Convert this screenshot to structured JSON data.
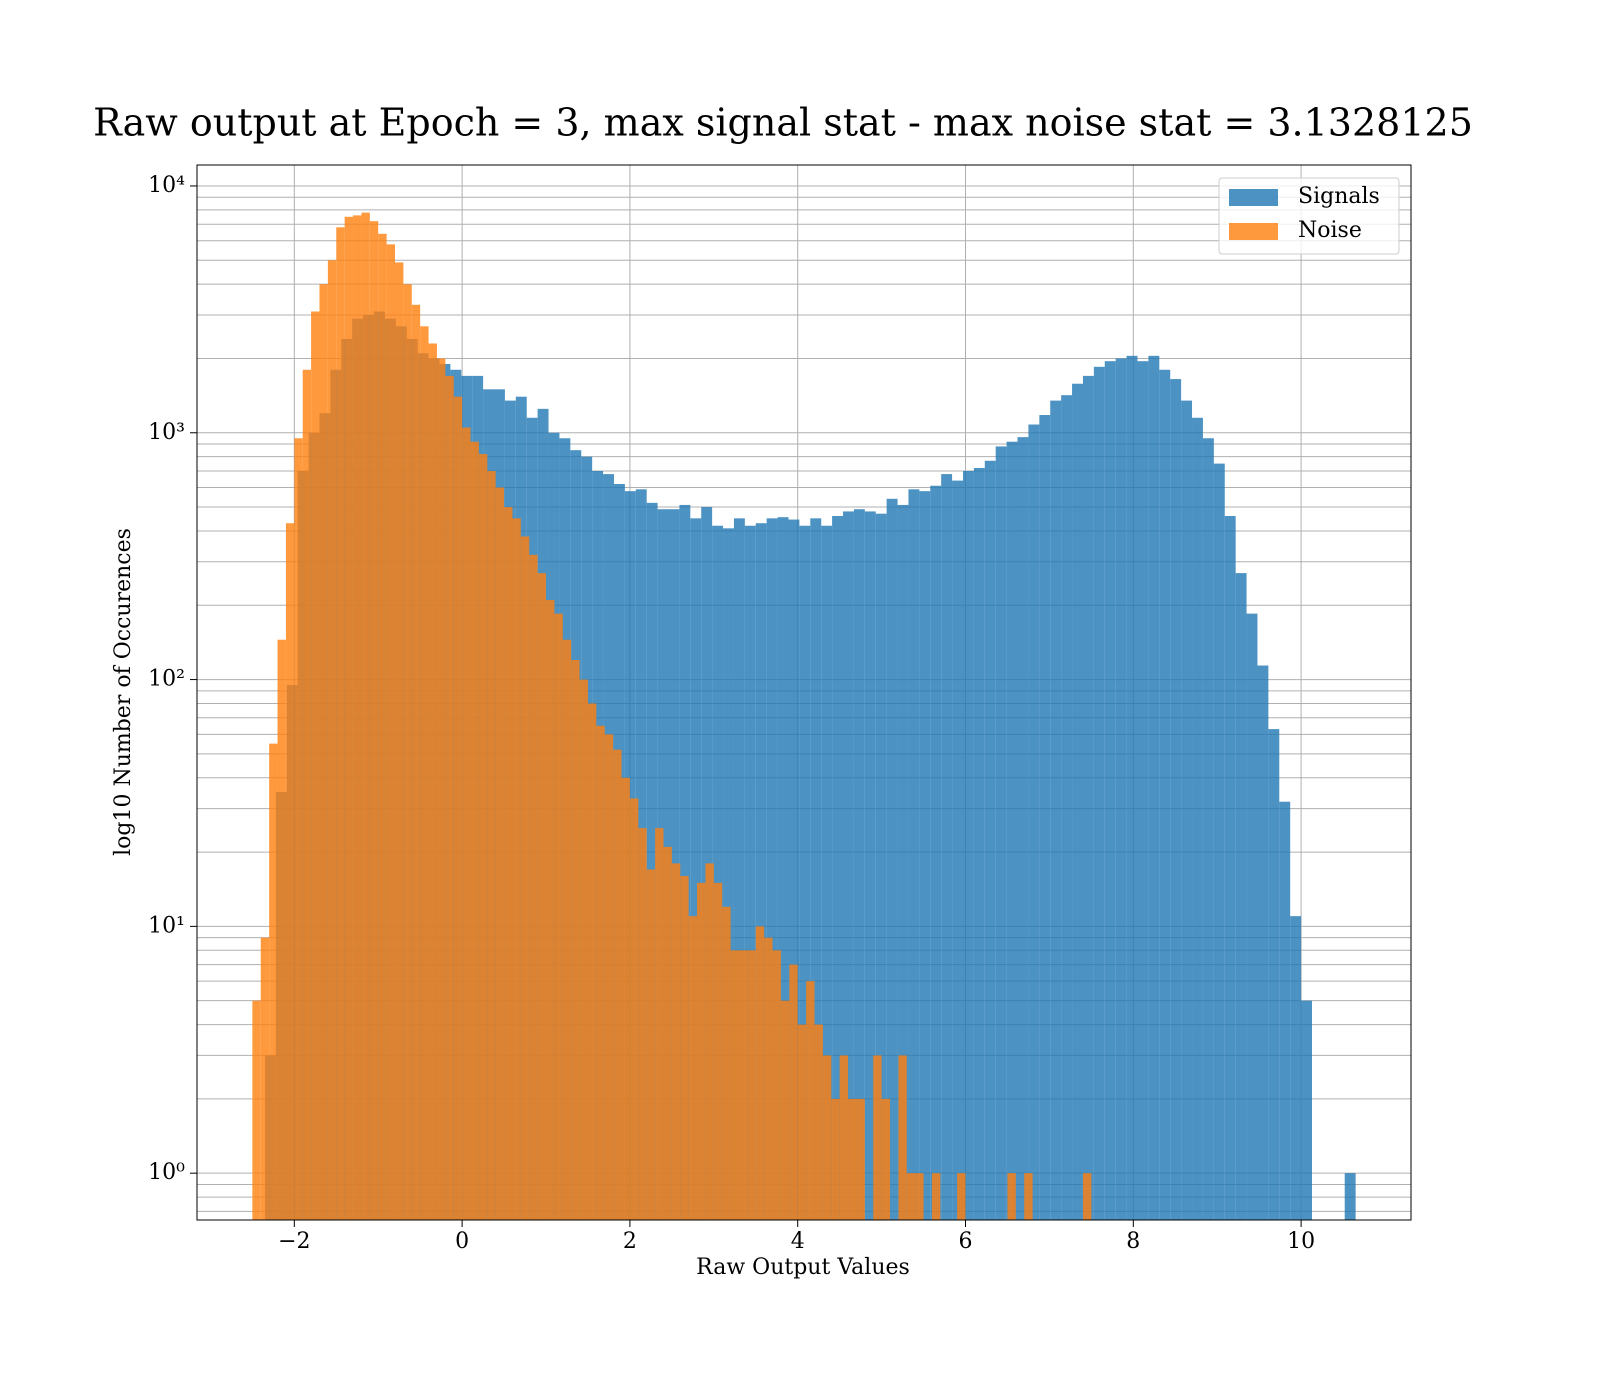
{
  "chart_data": {
    "type": "histogram",
    "title": "Raw output at Epoch = 3, max signal stat - max noise stat = 3.1328125",
    "xlabel": "Raw Output Values",
    "ylabel": "log10 Number of Occurences",
    "xlim": [
      -3.16,
      11.31
    ],
    "xticks": [
      {
        "value": -2,
        "label": "−2"
      },
      0,
      2,
      4,
      6,
      8,
      10
    ],
    "ylim": [
      0.646,
      12160
    ],
    "yscale": "log",
    "yticks": [
      {
        "value": 1,
        "label": "10⁰"
      },
      {
        "value": 10,
        "label": "10¹"
      },
      {
        "value": 100,
        "label": "10²"
      },
      {
        "value": 1000,
        "label": "10³"
      },
      {
        "value": 10000,
        "label": "10⁴"
      }
    ],
    "yminor_ticks": [
      0.7,
      0.8,
      0.9,
      2,
      3,
      4,
      5,
      6,
      7,
      8,
      9,
      20,
      30,
      40,
      50,
      60,
      70,
      80,
      90,
      200,
      300,
      400,
      500,
      600,
      700,
      800,
      900,
      2000,
      3000,
      4000,
      5000,
      6000,
      7000,
      8000,
      9000
    ],
    "grid": true,
    "legend": "upper right",
    "series": [
      {
        "name": "Signals",
        "color": "#1f77b4",
        "bins": [
          -2.35,
          -2.22,
          -2.09,
          -1.96,
          -1.83,
          -1.7,
          -1.57,
          -1.44,
          -1.31,
          -1.18,
          -1.05,
          -0.92,
          -0.79,
          -0.66,
          -0.53,
          -0.4,
          -0.27,
          -0.14,
          -0.01,
          0.12,
          0.25,
          0.38,
          0.51,
          0.64,
          0.77,
          0.9,
          1.03,
          1.16,
          1.29,
          1.42,
          1.55,
          1.68,
          1.81,
          1.94,
          2.07,
          2.2,
          2.33,
          2.46,
          2.59,
          2.72,
          2.85,
          2.98,
          3.11,
          3.24,
          3.37,
          3.5,
          3.63,
          3.76,
          3.89,
          4.02,
          4.15,
          4.28,
          4.41,
          4.54,
          4.67,
          4.8,
          4.93,
          5.06,
          5.19,
          5.32,
          5.45,
          5.58,
          5.71,
          5.84,
          5.97,
          6.1,
          6.23,
          6.36,
          6.49,
          6.62,
          6.75,
          6.88,
          7.01,
          7.14,
          7.27,
          7.4,
          7.53,
          7.66,
          7.79,
          7.92,
          8.05,
          8.18,
          8.31,
          8.44,
          8.57,
          8.7,
          8.83,
          8.96,
          9.09,
          9.22,
          9.35,
          9.48,
          9.61,
          9.74,
          9.87,
          10.0,
          10.13,
          10.26,
          10.39,
          10.52,
          10.65
        ],
        "values": [
          3,
          35,
          95,
          700,
          1000,
          1200,
          1800,
          2400,
          2900,
          3000,
          3100,
          2900,
          2700,
          2400,
          2100,
          2000,
          1900,
          1800,
          1700,
          1700,
          1500,
          1500,
          1350,
          1400,
          1150,
          1250,
          1000,
          950,
          850,
          800,
          700,
          680,
          620,
          580,
          590,
          520,
          490,
          490,
          510,
          450,
          500,
          420,
          410,
          450,
          420,
          430,
          450,
          455,
          445,
          420,
          450,
          420,
          460,
          480,
          490,
          480,
          470,
          540,
          510,
          590,
          580,
          610,
          680,
          640,
          700,
          720,
          770,
          880,
          920,
          960,
          1080,
          1180,
          1350,
          1420,
          1580,
          1700,
          1850,
          1950,
          2000,
          2050,
          1950,
          2050,
          1800,
          1650,
          1350,
          1150,
          950,
          750,
          460,
          270,
          185,
          114,
          63,
          32,
          11,
          5,
          0,
          0,
          0,
          1
        ]
      },
      {
        "name": "Noise",
        "color": "#ff7f0e",
        "bins": [
          -2.5,
          -2.4,
          -2.3,
          -2.2,
          -2.1,
          -2.0,
          -1.9,
          -1.8,
          -1.7,
          -1.6,
          -1.5,
          -1.4,
          -1.3,
          -1.2,
          -1.1,
          -1.0,
          -0.9,
          -0.8,
          -0.7,
          -0.6,
          -0.5,
          -0.4,
          -0.3,
          -0.2,
          -0.1,
          0.0,
          0.1,
          0.2,
          0.3,
          0.4,
          0.5,
          0.6,
          0.7,
          0.8,
          0.9,
          1.0,
          1.1,
          1.2,
          1.3,
          1.4,
          1.5,
          1.6,
          1.7,
          1.8,
          1.9,
          2.0,
          2.1,
          2.2,
          2.3,
          2.4,
          2.5,
          2.6,
          2.7,
          2.8,
          2.9,
          3.0,
          3.1,
          3.2,
          3.3,
          3.4,
          3.5,
          3.6,
          3.7,
          3.8,
          3.9,
          4.0,
          4.1,
          4.2,
          4.3,
          4.4,
          4.5,
          4.6,
          4.7,
          4.8,
          4.9,
          5.0,
          5.1,
          5.2,
          5.3,
          5.4,
          5.5,
          5.6,
          5.7,
          5.8,
          5.9,
          6.0,
          6.1,
          6.2,
          6.3,
          6.4,
          6.5,
          6.6,
          6.7,
          6.8,
          6.9,
          7.0,
          7.1,
          7.2,
          7.3,
          7.4,
          7.5
        ],
        "values": [
          5,
          9,
          55,
          145,
          430,
          950,
          1800,
          3100,
          4000,
          5000,
          6800,
          7500,
          7600,
          7800,
          7200,
          6400,
          5800,
          4900,
          4000,
          3300,
          2700,
          2300,
          2000,
          1700,
          1400,
          1050,
          920,
          820,
          700,
          600,
          500,
          450,
          380,
          320,
          270,
          210,
          185,
          145,
          120,
          100,
          80,
          65,
          60,
          52,
          40,
          33,
          25,
          17,
          25,
          21,
          18,
          16,
          11,
          15,
          18,
          15,
          12,
          8,
          8,
          8,
          10,
          9,
          8,
          5,
          7,
          4,
          6,
          4,
          3,
          2,
          3,
          2,
          2,
          0,
          3,
          2,
          0,
          3,
          1,
          1,
          0,
          1,
          0,
          0,
          1,
          0,
          0,
          0,
          0,
          0,
          1,
          0,
          1,
          0,
          0,
          0,
          0,
          0,
          0,
          1
        ]
      }
    ]
  }
}
